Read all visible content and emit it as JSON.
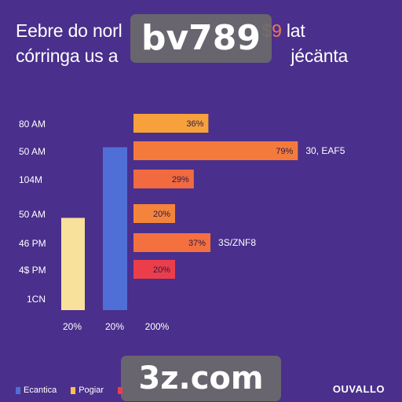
{
  "header": {
    "title_line1_start": "Eebre do norl",
    "title_line1_accent": "$9",
    "title_line1_end": "lat",
    "title_line2": "córringa us a",
    "title_line2_end": "jécänta"
  },
  "watermarks": {
    "top": "bv789",
    "bottom": "3z.com"
  },
  "chart_data": [
    {
      "type": "bar",
      "orientation": "horizontal",
      "categories": [
        "80 AM",
        "50 AM",
        "104M",
        "50 AM",
        "46 PM",
        "4$ PM"
      ],
      "values": [
        36,
        79,
        29,
        20,
        37,
        20
      ],
      "value_labels": [
        "36%",
        "79%",
        "29%",
        "20%",
        "37%",
        "20%"
      ],
      "side_labels": [
        "",
        "30, EAF5",
        "",
        "",
        "3S/ZNF8",
        ""
      ],
      "bar_colors": [
        "#f6a13b",
        "#f47a3c",
        "#f26a3f",
        "#f4843b",
        "#f4703f",
        "#ec3e4a"
      ],
      "xlim": [
        0,
        100
      ]
    },
    {
      "type": "bar",
      "orientation": "vertical",
      "categories": [
        "20%",
        "20%"
      ],
      "values": [
        47,
        83
      ],
      "bar_colors": [
        "#f8e19a",
        "#4f6fd6"
      ],
      "ylim": [
        0,
        100
      ]
    }
  ],
  "axis": {
    "bottom_row_label": "1CN",
    "x_ticks": [
      "20%",
      "20%",
      "200%"
    ]
  },
  "legend": {
    "items": [
      {
        "label": "Ecantica",
        "color": "#4f6fd6"
      },
      {
        "label": "Pogiar",
        "color": "#f6c34a"
      },
      {
        "label": "",
        "color": "#ec3e4a"
      }
    ]
  },
  "brand": "OUVALLO"
}
